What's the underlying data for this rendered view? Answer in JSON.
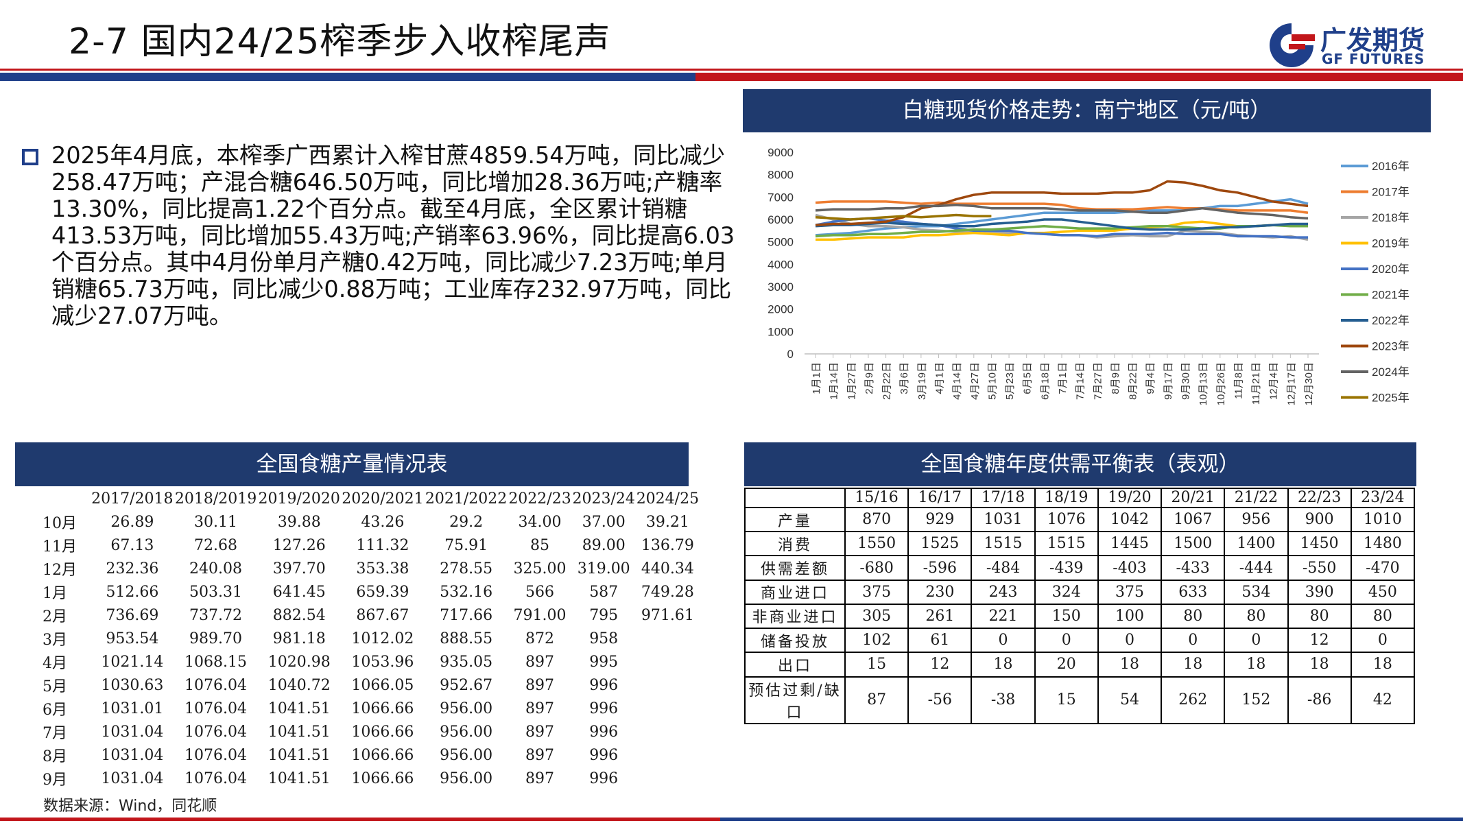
{
  "slide_title": "2-7  国内24/25榨季步入收榨尾声",
  "logo": {
    "cn": "广发期货",
    "en": "GF FUTURES",
    "colors": {
      "blue": "#1f3f8a",
      "red": "#c2161b"
    }
  },
  "paragraph": "2025年4月底，本榨季广西累计入榨甘蔗4859.54万吨，同比减少258.47万吨；产混合糖646.50万吨，同比增加28.36万吨;产糖率13.30%，同比提高1.22个百分点。截至4月底，全区累计销糖413.53万吨，同比增加55.43万吨;产销率63.96%，同比提高6.03个百分点。其中4月份单月产糖0.42万吨，同比减少7.23万吨;单月销糖65.73万吨，同比减少0.88万吨；工业库存232.97万吨，同比减少27.07万吨。",
  "chart_data": {
    "type": "line",
    "title": "白糖现货价格走势：南宁地区（元/吨）",
    "ylim": [
      0,
      9000
    ],
    "yticks": [
      0,
      1000,
      2000,
      3000,
      4000,
      5000,
      6000,
      7000,
      8000,
      9000
    ],
    "x_labels": [
      "1月1日",
      "1月14日",
      "1月27日",
      "2月9日",
      "2月22日",
      "3月6日",
      "3月19日",
      "4月1日",
      "4月14日",
      "4月27日",
      "5月10日",
      "5月23日",
      "6月5日",
      "6月18日",
      "7月1日",
      "7月14日",
      "7月27日",
      "8月9日",
      "8月22日",
      "9月4日",
      "9月17日",
      "9月30日",
      "10月13日",
      "10月26日",
      "11月8日",
      "11月21日",
      "12月4日",
      "12月17日",
      "12月30日"
    ],
    "legend_position": "right",
    "series": [
      {
        "name": "2016年",
        "color": "#5b9bd5",
        "values": [
          5300,
          5350,
          5400,
          5500,
          5600,
          5650,
          5700,
          5700,
          5800,
          5900,
          6000,
          6100,
          6200,
          6300,
          6300,
          6300,
          6300,
          6300,
          6350,
          6400,
          6400,
          6400,
          6500,
          6600,
          6600,
          6700,
          6800,
          6900,
          6700
        ]
      },
      {
        "name": "2017年",
        "color": "#ed7d31",
        "values": [
          6750,
          6800,
          6800,
          6800,
          6800,
          6750,
          6700,
          6750,
          6700,
          6700,
          6700,
          6700,
          6700,
          6700,
          6650,
          6500,
          6450,
          6450,
          6450,
          6500,
          6550,
          6500,
          6500,
          6450,
          6400,
          6400,
          6400,
          6400,
          6300
        ]
      },
      {
        "name": "2018年",
        "color": "#a5a5a5",
        "values": [
          6200,
          6000,
          5800,
          5700,
          5700,
          5650,
          5550,
          5500,
          5450,
          5500,
          5450,
          5400,
          5400,
          5350,
          5300,
          5300,
          5200,
          5250,
          5300,
          5250,
          5250,
          5500,
          5450,
          5400,
          5300,
          5250,
          5200,
          5250,
          5100
        ]
      },
      {
        "name": "2019年",
        "color": "#ffc000",
        "values": [
          5100,
          5100,
          5150,
          5200,
          5200,
          5200,
          5300,
          5300,
          5350,
          5400,
          5350,
          5300,
          5400,
          5400,
          5450,
          5500,
          5500,
          5500,
          5600,
          5650,
          5700,
          5850,
          5900,
          5800,
          5700,
          5700,
          5750,
          5750,
          5800
        ]
      },
      {
        "name": "2020年",
        "color": "#4472c4",
        "values": [
          5750,
          5900,
          6000,
          6050,
          5950,
          5900,
          5800,
          5750,
          5600,
          5500,
          5500,
          5500,
          5400,
          5350,
          5300,
          5300,
          5250,
          5350,
          5350,
          5350,
          5400,
          5350,
          5350,
          5350,
          5250,
          5250,
          5250,
          5200,
          5200
        ]
      },
      {
        "name": "2021年",
        "color": "#70ad47",
        "values": [
          5250,
          5300,
          5300,
          5350,
          5350,
          5400,
          5450,
          5450,
          5500,
          5550,
          5550,
          5600,
          5650,
          5700,
          5650,
          5600,
          5600,
          5600,
          5650,
          5700,
          5700,
          5650,
          5600,
          5600,
          5700,
          5700,
          5750,
          5700,
          5700
        ]
      },
      {
        "name": "2022年",
        "color": "#255e91",
        "values": [
          5700,
          5750,
          5750,
          5800,
          5850,
          5800,
          5800,
          5750,
          5700,
          5700,
          5800,
          5850,
          5900,
          6000,
          6000,
          5900,
          5800,
          5700,
          5600,
          5550,
          5550,
          5550,
          5600,
          5650,
          5650,
          5700,
          5750,
          5800,
          5800
        ]
      },
      {
        "name": "2023年",
        "color": "#9e480e",
        "values": [
          5750,
          5800,
          5800,
          5850,
          5900,
          6100,
          6500,
          6650,
          6900,
          7100,
          7200,
          7200,
          7200,
          7200,
          7150,
          7150,
          7150,
          7200,
          7200,
          7300,
          7700,
          7650,
          7500,
          7300,
          7200,
          7000,
          6800,
          6700,
          6600
        ]
      },
      {
        "name": "2024年",
        "color": "#636363",
        "values": [
          6400,
          6450,
          6450,
          6450,
          6500,
          6500,
          6600,
          6600,
          6650,
          6600,
          6500,
          6500,
          6500,
          6500,
          6450,
          6400,
          6400,
          6400,
          6350,
          6300,
          6300,
          6400,
          6500,
          6400,
          6300,
          6250,
          6200,
          6100,
          6050
        ]
      },
      {
        "name": "2025年",
        "color": "#997300",
        "values": [
          6100,
          6050,
          6000,
          6050,
          6100,
          6150,
          6100,
          6150,
          6200,
          6150,
          6150,
          null,
          null,
          null,
          null,
          null,
          null,
          null,
          null,
          null,
          null,
          null,
          null,
          null,
          null,
          null,
          null,
          null,
          null
        ]
      }
    ]
  },
  "production_table": {
    "title": "全国食糖产量情况表",
    "columns": [
      "",
      "2017/2018",
      "2018/2019",
      "2019/2020",
      "2020/2021",
      "2021/2022",
      "2022/23",
      "2023/24",
      "2024/25"
    ],
    "rows": [
      [
        "10月",
        "26.89",
        "30.11",
        "39.88",
        "43.26",
        "29.2",
        "34.00",
        "37.00",
        "39.21"
      ],
      [
        "11月",
        "67.13",
        "72.68",
        "127.26",
        "111.32",
        "75.91",
        "85",
        "89.00",
        "136.79"
      ],
      [
        "12月",
        "232.36",
        "240.08",
        "397.70",
        "353.38",
        "278.55",
        "325.00",
        "319.00",
        "440.34"
      ],
      [
        "1月",
        "512.66",
        "503.31",
        "641.45",
        "659.39",
        "532.16",
        "566",
        "587",
        "749.28"
      ],
      [
        "2月",
        "736.69",
        "737.72",
        "882.54",
        "867.67",
        "717.66",
        "791.00",
        "795",
        "971.61"
      ],
      [
        "3月",
        "953.54",
        "989.70",
        "981.18",
        "1012.02",
        "888.55",
        "872",
        "958",
        ""
      ],
      [
        "4月",
        "1021.14",
        "1068.15",
        "1020.98",
        "1053.96",
        "935.05",
        "897",
        "995",
        ""
      ],
      [
        "5月",
        "1030.63",
        "1076.04",
        "1040.72",
        "1066.05",
        "952.67",
        "897",
        "996",
        ""
      ],
      [
        "6月",
        "1031.01",
        "1076.04",
        "1041.51",
        "1066.66",
        "956.00",
        "897",
        "996",
        ""
      ],
      [
        "7月",
        "1031.04",
        "1076.04",
        "1041.51",
        "1066.66",
        "956.00",
        "897",
        "996",
        ""
      ],
      [
        "8月",
        "1031.04",
        "1076.04",
        "1041.51",
        "1066.66",
        "956.00",
        "897",
        "996",
        ""
      ],
      [
        "9月",
        "1031.04",
        "1076.04",
        "1041.51",
        "1066.66",
        "956.00",
        "897",
        "996",
        ""
      ]
    ]
  },
  "balance_table": {
    "title": "全国食糖年度供需平衡表（表观）",
    "columns": [
      "",
      "15/16",
      "16/17",
      "17/18",
      "18/19",
      "19/20",
      "20/21",
      "21/22",
      "22/23",
      "23/24"
    ],
    "rows": [
      [
        "产量",
        "870",
        "929",
        "1031",
        "1076",
        "1042",
        "1067",
        "956",
        "900",
        "1010"
      ],
      [
        "消费",
        "1550",
        "1525",
        "1515",
        "1515",
        "1445",
        "1500",
        "1400",
        "1450",
        "1480"
      ],
      [
        "供需差额",
        "-680",
        "-596",
        "-484",
        "-439",
        "-403",
        "-433",
        "-444",
        "-550",
        "-470"
      ],
      [
        "商业进口",
        "375",
        "230",
        "243",
        "324",
        "375",
        "633",
        "534",
        "390",
        "450"
      ],
      [
        "非商业进口",
        "305",
        "261",
        "221",
        "150",
        "100",
        "80",
        "80",
        "80",
        "80"
      ],
      [
        "储备投放",
        "102",
        "61",
        "0",
        "0",
        "0",
        "0",
        "0",
        "12",
        "0"
      ],
      [
        "出口",
        "15",
        "12",
        "18",
        "20",
        "18",
        "18",
        "18",
        "18",
        "18"
      ],
      [
        "预估过剩/缺口",
        "87",
        "-56",
        "-38",
        "15",
        "54",
        "262",
        "152",
        "-86",
        "42"
      ]
    ]
  },
  "source": "数据来源：Wind，同花顺"
}
